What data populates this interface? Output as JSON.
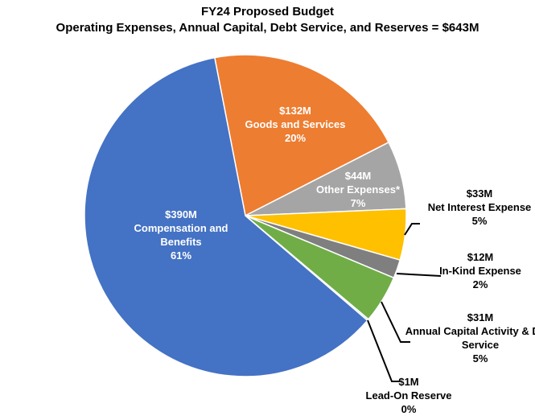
{
  "chart_data": {
    "type": "pie",
    "title": "FY24 Proposed Budget",
    "subtitle": "Operating Expenses, Annual Capital,  Debt Service, and Reserves = $643M",
    "categories": [
      "Goods and Services",
      "Other Expenses*",
      "Net Interest Expense",
      "In-Kind Expense",
      "Annual Capital Activity & Debt Service",
      "Lead-On Reserve",
      "Compensation and Benefits"
    ],
    "values": [
      132,
      44,
      33,
      12,
      31,
      1,
      390
    ],
    "value_labels": [
      "$132M",
      "$44M",
      "$33M",
      "$12M",
      "$31M",
      "$1M",
      "$390M"
    ],
    "percentages": [
      20,
      7,
      5,
      2,
      5,
      0,
      61
    ],
    "percentage_labels": [
      "20%",
      "7%",
      "5%",
      "2%",
      "5%",
      "0%",
      "61%"
    ],
    "colors": [
      "#ed7d31",
      "#a5a5a5",
      "#ffc000",
      "#7f7f7f",
      "#70ad47",
      "#9dc3e6",
      "#4472c4"
    ]
  }
}
